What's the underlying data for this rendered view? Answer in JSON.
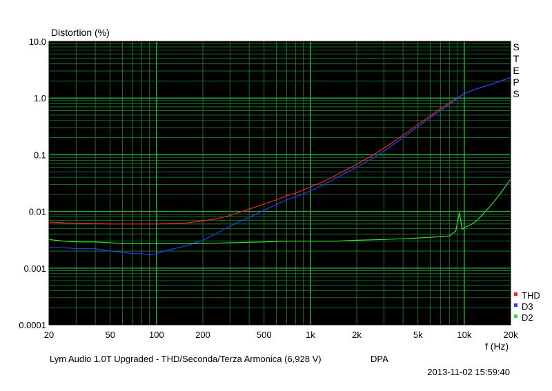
{
  "chart_data": {
    "type": "line",
    "ylabel": "Distortion (%)",
    "xlabel": "f (Hz)",
    "x_scale": "log",
    "y_scale": "log",
    "xlim": [
      20,
      20000
    ],
    "ylim": [
      0.0001,
      10
    ],
    "grid": true,
    "background": "#000000",
    "grid_color": "#1e8a2e",
    "x_ticks": [
      {
        "v": 20,
        "label": "20"
      },
      {
        "v": 50,
        "label": "50"
      },
      {
        "v": 100,
        "label": "100"
      },
      {
        "v": 200,
        "label": "200"
      },
      {
        "v": 500,
        "label": "500"
      },
      {
        "v": 1000,
        "label": "1k"
      },
      {
        "v": 2000,
        "label": "2k"
      },
      {
        "v": 5000,
        "label": "5k"
      },
      {
        "v": 10000,
        "label": "10k"
      },
      {
        "v": 20000,
        "label": "20k"
      }
    ],
    "y_ticks": [
      {
        "v": 10,
        "label": "10.0"
      },
      {
        "v": 1,
        "label": "1.0"
      },
      {
        "v": 0.1,
        "label": "0.1"
      },
      {
        "v": 0.01,
        "label": "0.01"
      },
      {
        "v": 0.001,
        "label": "0.001"
      },
      {
        "v": 0.0001,
        "label": "0.0001"
      }
    ],
    "side_label": "STEPS",
    "legend_position": "bottom-right",
    "series": [
      {
        "name": "THD",
        "color": "#ff2020",
        "x": [
          20,
          25,
          30,
          40,
          50,
          60,
          70,
          80,
          90,
          100,
          120,
          150,
          200,
          250,
          300,
          400,
          500,
          600,
          700,
          800,
          1000,
          1200,
          1500,
          2000,
          2500,
          3000,
          4000,
          5000,
          6000,
          7000,
          8000,
          9000,
          10000,
          12000,
          15000,
          20000
        ],
        "y": [
          0.0065,
          0.0063,
          0.0062,
          0.0061,
          0.006,
          0.006,
          0.006,
          0.006,
          0.006,
          0.006,
          0.0061,
          0.0062,
          0.0068,
          0.0075,
          0.0085,
          0.011,
          0.0135,
          0.016,
          0.019,
          0.021,
          0.027,
          0.033,
          0.045,
          0.068,
          0.095,
          0.13,
          0.22,
          0.34,
          0.48,
          0.65,
          0.82,
          1.0,
          1.2,
          1.45,
          1.75,
          2.3
        ]
      },
      {
        "name": "D3",
        "color": "#2040ff",
        "x": [
          20,
          25,
          30,
          40,
          50,
          60,
          70,
          80,
          90,
          100,
          120,
          150,
          200,
          250,
          300,
          400,
          500,
          600,
          700,
          800,
          1000,
          1200,
          1500,
          2000,
          2500,
          3000,
          4000,
          5000,
          6000,
          7000,
          8000,
          9000,
          10000,
          12000,
          15000,
          20000
        ],
        "y": [
          0.0023,
          0.0023,
          0.0022,
          0.0022,
          0.002,
          0.0019,
          0.0018,
          0.0018,
          0.0017,
          0.0018,
          0.0021,
          0.0024,
          0.0031,
          0.0042,
          0.0055,
          0.0079,
          0.0105,
          0.0132,
          0.016,
          0.018,
          0.023,
          0.029,
          0.04,
          0.06,
          0.085,
          0.115,
          0.2,
          0.31,
          0.45,
          0.6,
          0.78,
          0.98,
          1.2,
          1.45,
          1.75,
          2.3
        ]
      },
      {
        "name": "D2",
        "color": "#30e030",
        "x": [
          20,
          25,
          30,
          40,
          50,
          60,
          70,
          80,
          90,
          100,
          150,
          200,
          300,
          500,
          700,
          1000,
          1500,
          2000,
          3000,
          4000,
          5000,
          6000,
          7000,
          8000,
          8800,
          9300,
          9700,
          10000,
          11000,
          12000,
          13000,
          15000,
          17000,
          20000
        ],
        "y": [
          0.0032,
          0.003,
          0.0029,
          0.0029,
          0.0028,
          0.0027,
          0.0027,
          0.0027,
          0.0027,
          0.0027,
          0.0027,
          0.0027,
          0.0028,
          0.0029,
          0.003,
          0.003,
          0.003,
          0.0031,
          0.0032,
          0.0033,
          0.0034,
          0.0035,
          0.0036,
          0.0037,
          0.0045,
          0.0095,
          0.0048,
          0.0052,
          0.0058,
          0.0068,
          0.0085,
          0.013,
          0.02,
          0.037
        ]
      }
    ]
  },
  "footer": {
    "caption": "Lym Audio 1.0T Upgraded - THD/Seconda/Terza Armonica (6,928 V)",
    "tag": "DPA",
    "timestamp": "2013-11-02 15:59:40"
  }
}
